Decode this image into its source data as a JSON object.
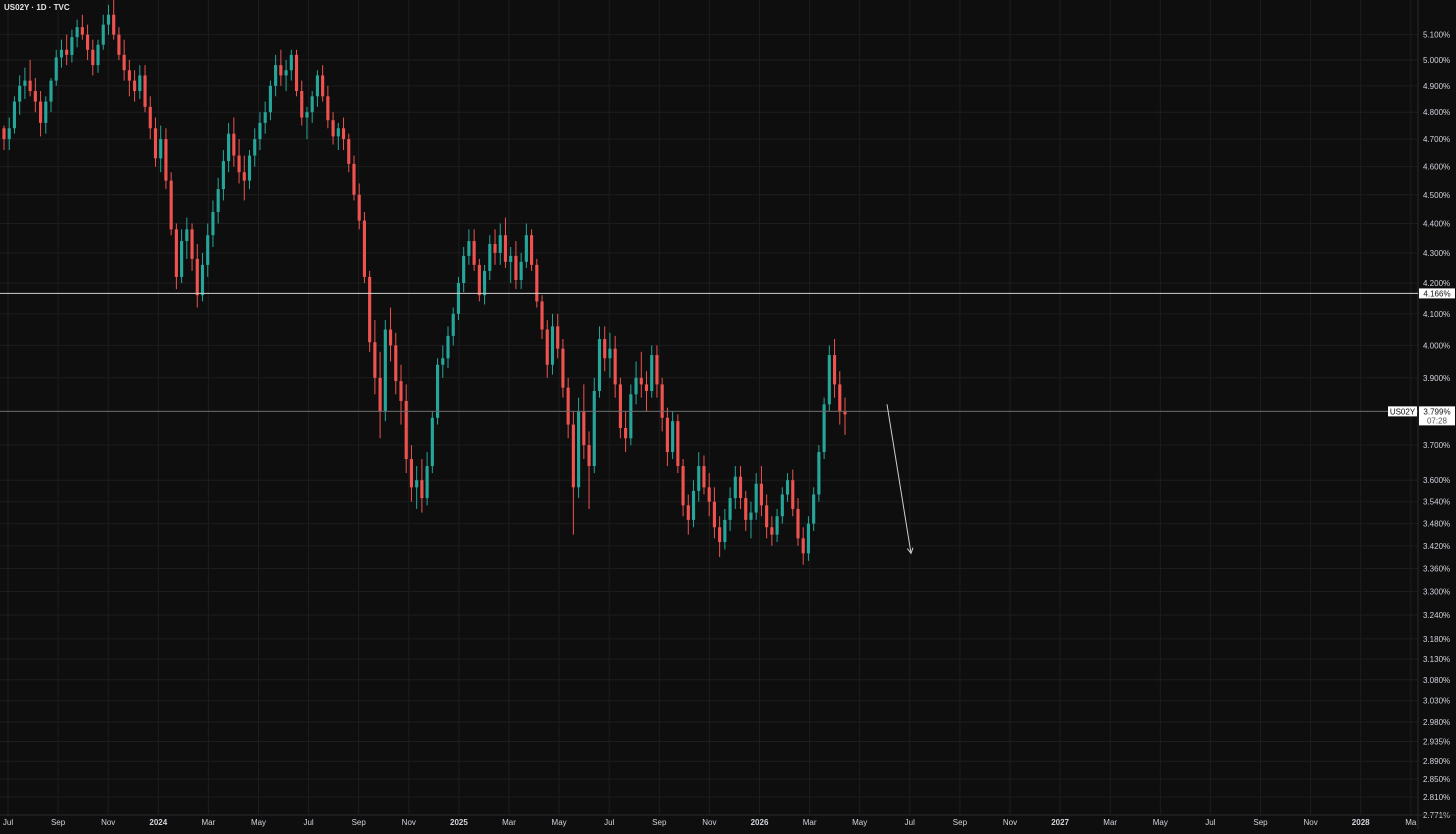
{
  "header": {
    "symbol_title": "US02Y · 1D · TVC"
  },
  "chart_data": {
    "type": "candlestick",
    "ohlc": [
      [
        4.74,
        4.75,
        4.66,
        4.7
      ],
      [
        4.7,
        4.78,
        4.66,
        4.74
      ],
      [
        4.74,
        4.86,
        4.72,
        4.84
      ],
      [
        4.84,
        4.94,
        4.79,
        4.9
      ],
      [
        4.9,
        4.97,
        4.85,
        4.92
      ],
      [
        4.92,
        5.0,
        4.86,
        4.88
      ],
      [
        4.88,
        4.93,
        4.8,
        4.84
      ],
      [
        4.84,
        4.88,
        4.71,
        4.76
      ],
      [
        4.76,
        4.86,
        4.72,
        4.84
      ],
      [
        4.84,
        4.93,
        4.8,
        4.92
      ],
      [
        4.92,
        5.04,
        4.9,
        5.01
      ],
      [
        5.01,
        5.08,
        4.97,
        5.04
      ],
      [
        5.04,
        5.1,
        4.98,
        5.02
      ],
      [
        5.02,
        5.12,
        4.99,
        5.09
      ],
      [
        5.09,
        5.16,
        5.05,
        5.13
      ],
      [
        5.13,
        5.18,
        5.08,
        5.1
      ],
      [
        5.1,
        5.14,
        5.0,
        5.04
      ],
      [
        5.04,
        5.08,
        4.94,
        4.98
      ],
      [
        4.98,
        5.08,
        4.95,
        5.06
      ],
      [
        5.06,
        5.18,
        5.04,
        5.14
      ],
      [
        5.14,
        5.22,
        5.1,
        5.18
      ],
      [
        5.18,
        5.24,
        5.08,
        5.1
      ],
      [
        5.1,
        5.13,
        5.0,
        5.02
      ],
      [
        5.02,
        5.08,
        4.92,
        4.96
      ],
      [
        4.96,
        5.0,
        4.86,
        4.92
      ],
      [
        4.92,
        4.96,
        4.84,
        4.88
      ],
      [
        4.88,
        4.98,
        4.85,
        4.94
      ],
      [
        4.94,
        4.98,
        4.8,
        4.82
      ],
      [
        4.82,
        4.86,
        4.7,
        4.74
      ],
      [
        4.74,
        4.78,
        4.6,
        4.63
      ],
      [
        4.63,
        4.75,
        4.58,
        4.7
      ],
      [
        4.7,
        4.74,
        4.52,
        4.55
      ],
      [
        4.55,
        4.58,
        4.36,
        4.38
      ],
      [
        4.38,
        4.4,
        4.18,
        4.22
      ],
      [
        4.22,
        4.38,
        4.2,
        4.34
      ],
      [
        4.34,
        4.42,
        4.28,
        4.38
      ],
      [
        4.38,
        4.4,
        4.24,
        4.28
      ],
      [
        4.28,
        4.33,
        4.12,
        4.16
      ],
      [
        4.16,
        4.3,
        4.14,
        4.26
      ],
      [
        4.26,
        4.4,
        4.22,
        4.36
      ],
      [
        4.36,
        4.48,
        4.32,
        4.44
      ],
      [
        4.44,
        4.56,
        4.4,
        4.52
      ],
      [
        4.52,
        4.66,
        4.48,
        4.62
      ],
      [
        4.62,
        4.76,
        4.58,
        4.72
      ],
      [
        4.72,
        4.78,
        4.6,
        4.64
      ],
      [
        4.64,
        4.7,
        4.54,
        4.58
      ],
      [
        4.58,
        4.64,
        4.48,
        4.55
      ],
      [
        4.55,
        4.66,
        4.52,
        4.64
      ],
      [
        4.64,
        4.74,
        4.6,
        4.7
      ],
      [
        4.7,
        4.8,
        4.66,
        4.76
      ],
      [
        4.76,
        4.84,
        4.72,
        4.8
      ],
      [
        4.8,
        4.92,
        4.77,
        4.9
      ],
      [
        4.9,
        5.02,
        4.86,
        4.98
      ],
      [
        4.98,
        5.04,
        4.9,
        4.94
      ],
      [
        4.94,
        5.0,
        4.88,
        4.96
      ],
      [
        4.96,
        5.04,
        4.92,
        5.02
      ],
      [
        5.02,
        5.04,
        4.86,
        4.88
      ],
      [
        4.88,
        4.92,
        4.75,
        4.78
      ],
      [
        4.78,
        4.82,
        4.7,
        4.8
      ],
      [
        4.8,
        4.88,
        4.76,
        4.86
      ],
      [
        4.86,
        4.96,
        4.82,
        4.94
      ],
      [
        4.94,
        4.98,
        4.84,
        4.86
      ],
      [
        4.86,
        4.9,
        4.74,
        4.77
      ],
      [
        4.77,
        4.8,
        4.68,
        4.71
      ],
      [
        4.71,
        4.76,
        4.66,
        4.74
      ],
      [
        4.74,
        4.78,
        4.66,
        4.7
      ],
      [
        4.7,
        4.72,
        4.58,
        4.61
      ],
      [
        4.61,
        4.64,
        4.48,
        4.5
      ],
      [
        4.5,
        4.54,
        4.38,
        4.41
      ],
      [
        4.41,
        4.44,
        4.2,
        4.22
      ],
      [
        4.22,
        4.24,
        3.98,
        4.01
      ],
      [
        4.01,
        4.08,
        3.85,
        3.9
      ],
      [
        3.9,
        3.98,
        3.72,
        3.8
      ],
      [
        3.8,
        4.08,
        3.77,
        4.05
      ],
      [
        4.05,
        4.12,
        3.95,
        4.0
      ],
      [
        4.0,
        4.04,
        3.85,
        3.89
      ],
      [
        3.89,
        3.94,
        3.76,
        3.83
      ],
      [
        3.83,
        3.88,
        3.62,
        3.66
      ],
      [
        3.66,
        3.7,
        3.54,
        3.58
      ],
      [
        3.58,
        3.64,
        3.52,
        3.6
      ],
      [
        3.6,
        3.66,
        3.51,
        3.55
      ],
      [
        3.55,
        3.68,
        3.53,
        3.64
      ],
      [
        3.64,
        3.8,
        3.62,
        3.78
      ],
      [
        3.78,
        3.96,
        3.76,
        3.94
      ],
      [
        3.94,
        4.0,
        3.9,
        3.96
      ],
      [
        3.96,
        4.06,
        3.93,
        4.03
      ],
      [
        4.03,
        4.12,
        4.0,
        4.1
      ],
      [
        4.1,
        4.22,
        4.08,
        4.2
      ],
      [
        4.2,
        4.32,
        4.17,
        4.29
      ],
      [
        4.29,
        4.38,
        4.26,
        4.34
      ],
      [
        4.34,
        4.38,
        4.24,
        4.26
      ],
      [
        4.26,
        4.28,
        4.14,
        4.16
      ],
      [
        4.16,
        4.26,
        4.13,
        4.24
      ],
      [
        4.24,
        4.36,
        4.21,
        4.33
      ],
      [
        4.33,
        4.38,
        4.26,
        4.3
      ],
      [
        4.3,
        4.4,
        4.26,
        4.36
      ],
      [
        4.36,
        4.42,
        4.25,
        4.27
      ],
      [
        4.27,
        4.32,
        4.2,
        4.29
      ],
      [
        4.29,
        4.34,
        4.18,
        4.21
      ],
      [
        4.21,
        4.3,
        4.18,
        4.27
      ],
      [
        4.27,
        4.4,
        4.25,
        4.36
      ],
      [
        4.36,
        4.38,
        4.24,
        4.26
      ],
      [
        4.26,
        4.28,
        4.12,
        4.14
      ],
      [
        4.14,
        4.16,
        4.02,
        4.05
      ],
      [
        4.05,
        4.08,
        3.9,
        3.94
      ],
      [
        3.94,
        4.1,
        3.91,
        4.06
      ],
      [
        4.06,
        4.1,
        3.96,
        3.99
      ],
      [
        3.99,
        4.02,
        3.84,
        3.87
      ],
      [
        3.87,
        3.9,
        3.72,
        3.76
      ],
      [
        3.76,
        3.8,
        3.45,
        3.58
      ],
      [
        3.58,
        3.84,
        3.55,
        3.8
      ],
      [
        3.8,
        3.88,
        3.66,
        3.7
      ],
      [
        3.7,
        3.74,
        3.52,
        3.64
      ],
      [
        3.64,
        3.9,
        3.62,
        3.86
      ],
      [
        3.86,
        4.06,
        3.84,
        4.02
      ],
      [
        4.02,
        4.06,
        3.92,
        3.96
      ],
      [
        3.96,
        4.04,
        3.9,
        3.99
      ],
      [
        3.99,
        4.03,
        3.84,
        3.88
      ],
      [
        3.88,
        3.9,
        3.72,
        3.75
      ],
      [
        3.75,
        3.8,
        3.68,
        3.72
      ],
      [
        3.72,
        3.88,
        3.7,
        3.85
      ],
      [
        3.85,
        3.95,
        3.82,
        3.9
      ],
      [
        3.9,
        3.98,
        3.84,
        3.88
      ],
      [
        3.88,
        3.92,
        3.8,
        3.86
      ],
      [
        3.86,
        4.0,
        3.84,
        3.97
      ],
      [
        3.97,
        4.0,
        3.84,
        3.88
      ],
      [
        3.88,
        3.9,
        3.74,
        3.78
      ],
      [
        3.78,
        3.81,
        3.64,
        3.68
      ],
      [
        3.68,
        3.8,
        3.66,
        3.77
      ],
      [
        3.77,
        3.79,
        3.62,
        3.64
      ],
      [
        3.64,
        3.66,
        3.5,
        3.53
      ],
      [
        3.53,
        3.56,
        3.45,
        3.49
      ],
      [
        3.49,
        3.6,
        3.47,
        3.57
      ],
      [
        3.57,
        3.68,
        3.54,
        3.64
      ],
      [
        3.64,
        3.67,
        3.56,
        3.58
      ],
      [
        3.58,
        3.62,
        3.5,
        3.54
      ],
      [
        3.54,
        3.58,
        3.44,
        3.47
      ],
      [
        3.47,
        3.5,
        3.39,
        3.43
      ],
      [
        3.43,
        3.52,
        3.41,
        3.49
      ],
      [
        3.49,
        3.58,
        3.46,
        3.55
      ],
      [
        3.55,
        3.64,
        3.52,
        3.61
      ],
      [
        3.61,
        3.64,
        3.52,
        3.55
      ],
      [
        3.55,
        3.57,
        3.46,
        3.49
      ],
      [
        3.49,
        3.54,
        3.44,
        3.51
      ],
      [
        3.51,
        3.62,
        3.49,
        3.59
      ],
      [
        3.59,
        3.64,
        3.5,
        3.53
      ],
      [
        3.53,
        3.56,
        3.44,
        3.47
      ],
      [
        3.47,
        3.5,
        3.42,
        3.45
      ],
      [
        3.45,
        3.52,
        3.43,
        3.5
      ],
      [
        3.5,
        3.58,
        3.48,
        3.56
      ],
      [
        3.56,
        3.62,
        3.54,
        3.6
      ],
      [
        3.6,
        3.63,
        3.5,
        3.52
      ],
      [
        3.52,
        3.55,
        3.42,
        3.44
      ],
      [
        3.44,
        3.47,
        3.37,
        3.4
      ],
      [
        3.4,
        3.5,
        3.38,
        3.48
      ],
      [
        3.48,
        3.58,
        3.46,
        3.56
      ],
      [
        3.56,
        3.7,
        3.54,
        3.68
      ],
      [
        3.68,
        3.84,
        3.66,
        3.82
      ],
      [
        3.82,
        4.0,
        3.8,
        3.97
      ],
      [
        3.97,
        4.02,
        3.84,
        3.88
      ],
      [
        3.88,
        3.92,
        3.76,
        3.8
      ],
      [
        3.8,
        3.84,
        3.73,
        3.79
      ]
    ],
    "y_ticks": [
      "5.100%",
      "5.000%",
      "4.900%",
      "4.800%",
      "4.700%",
      "4.600%",
      "4.500%",
      "4.400%",
      "4.300%",
      "4.200%",
      "4.100%",
      "4.000%",
      "3.900%",
      "3.800%",
      "3.700%",
      "3.600%",
      "3.540%",
      "3.480%",
      "3.420%",
      "3.360%",
      "3.300%",
      "3.240%",
      "3.180%",
      "3.130%",
      "3.080%",
      "3.030%",
      "2.980%",
      "2.935%",
      "2.890%",
      "2.850%",
      "2.810%",
      "2.771%"
    ],
    "x_ticks": [
      "Jul",
      "Sep",
      "Nov",
      "2024",
      "Mar",
      "May",
      "Jul",
      "Sep",
      "Nov",
      "2025",
      "Mar",
      "May",
      "Jul",
      "Sep",
      "Nov",
      "2026",
      "Mar",
      "May",
      "Jul",
      "Sep",
      "Nov",
      "2027",
      "Mar",
      "May",
      "Jul",
      "Sep",
      "Nov",
      "2028",
      "Ma"
    ],
    "x_ticks_bold": [
      "2024",
      "2025",
      "2026",
      "2027",
      "2028"
    ],
    "y_range": [
      2.771,
      5.24
    ],
    "log_scale": true,
    "horizontal_line": {
      "value": 4.166,
      "label": "4.166%"
    },
    "current_price": {
      "symbol": "US02Y",
      "value": "3.799%",
      "countdown": "07:28"
    },
    "projection_arrow": {
      "from": 3.82,
      "to": 3.4
    },
    "colors": {
      "up": "#26a69a",
      "down": "#ef5350",
      "grid": "#1d1d1d",
      "background": "#0e0e0e",
      "axis_text": "#d1d4dc",
      "line": "#cfcfcf",
      "tag_bg": "#ffffff",
      "tag_text": "#111111"
    }
  }
}
